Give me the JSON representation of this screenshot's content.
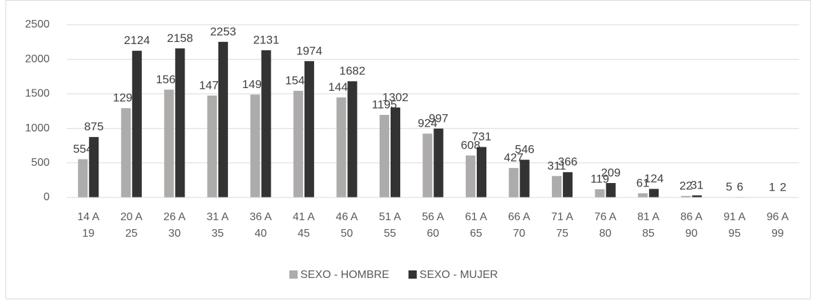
{
  "chart_data": {
    "type": "bar",
    "categories": [
      "14 A 19",
      "20 A 25",
      "26 A 30",
      "31 A 35",
      "36 A 40",
      "41 A 45",
      "46 A 50",
      "51 A 55",
      "56 A 60",
      "61 A 65",
      "66 A 70",
      "71 A 75",
      "76 A 80",
      "81 A 85",
      "86 A 90",
      "91 A 95",
      "96 A 99"
    ],
    "series": [
      {
        "name": "SEXO - HOMBRE",
        "color": "#aeabab",
        "values": [
          554,
          1293,
          1561,
          1476,
          1490,
          1544,
          1449,
          1195,
          924,
          608,
          427,
          311,
          119,
          61,
          22,
          5,
          1
        ]
      },
      {
        "name": "SEXO - MUJER",
        "color": "#333333",
        "values": [
          875,
          2124,
          2158,
          2253,
          2131,
          1974,
          1682,
          1302,
          997,
          731,
          546,
          366,
          209,
          124,
          31,
          6,
          2
        ]
      }
    ],
    "ylim": [
      0,
      2500
    ],
    "yticks": [
      0,
      500,
      1000,
      1500,
      2000,
      2500
    ],
    "grid": true,
    "legend": "bottom"
  }
}
